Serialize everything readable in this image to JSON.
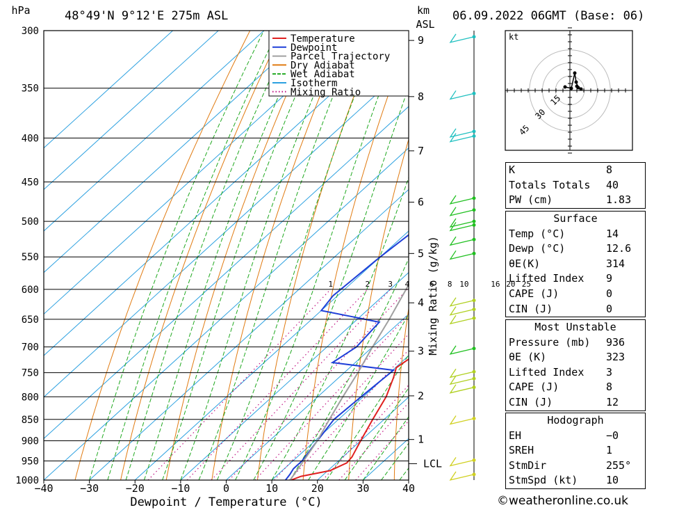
{
  "header": {
    "pressure_unit": "hPa",
    "location": "48°49'N  9°12'E  275m  ASL",
    "km_label": "km",
    "asl_label": "ASL",
    "datetime": "06.09.2022  06GMT  (Base: 06)"
  },
  "chart_data": {
    "type": "line",
    "title": "48°49'N  9°12'E  275m  ASL",
    "xlabel": "Dewpoint / Temperature (°C)",
    "ylabel": "hPa",
    "xlim": [
      -40,
      40
    ],
    "ylim": [
      1000,
      300
    ],
    "x_ticks": [
      "−40",
      "−30",
      "−20",
      "−10",
      "0",
      "10",
      "20",
      "30",
      "40"
    ],
    "x_tick_values": [
      -40,
      -30,
      -20,
      -10,
      0,
      10,
      20,
      30,
      40
    ],
    "pressure_levels": [
      300,
      350,
      400,
      450,
      500,
      550,
      600,
      650,
      700,
      750,
      800,
      850,
      900,
      950,
      1000
    ],
    "km_ticks": [
      {
        "label": "9",
        "p": 308
      },
      {
        "label": "8",
        "p": 358
      },
      {
        "label": "7",
        "p": 414
      },
      {
        "label": "6",
        "p": 475
      },
      {
        "label": "5",
        "p": 545
      },
      {
        "label": "4",
        "p": 622
      },
      {
        "label": "3",
        "p": 708
      },
      {
        "label": "2",
        "p": 798
      },
      {
        "label": "1",
        "p": 897
      }
    ],
    "lcl": {
      "label": "LCL",
      "p": 957
    },
    "mixing_ratio_label": "Mixing Ratio (g/kg)",
    "mixing_ratio_lines": [
      "1",
      "2",
      "3",
      "4",
      "6",
      "8",
      "10",
      "16",
      "20",
      "25"
    ],
    "legend_position": "top-right",
    "legend": [
      {
        "name": "Temperature",
        "color": "#e02020"
      },
      {
        "name": "Dewpoint",
        "color": "#1f3fd8"
      },
      {
        "name": "Parcel Trajectory",
        "color": "#a0a0a0"
      },
      {
        "name": "Dry Adiabat",
        "color": "#e07a10"
      },
      {
        "name": "Wet Adiabat",
        "color": "#1fa81f"
      },
      {
        "name": "Isotherm",
        "color": "#2ba0e0"
      },
      {
        "name": "Mixing Ratio",
        "color": "#c01080"
      }
    ],
    "series": [
      {
        "name": "Temperature",
        "points": [
          [
            1000,
            14.2
          ],
          [
            990,
            15.5
          ],
          [
            975,
            20.5
          ],
          [
            955,
            22.3
          ],
          [
            940,
            22
          ],
          [
            900,
            20
          ],
          [
            850,
            17.5
          ],
          [
            800,
            15
          ],
          [
            760,
            12
          ],
          [
            740,
            10.2
          ],
          [
            720,
            11
          ],
          [
            700,
            11.2
          ],
          [
            660,
            9
          ],
          [
            640,
            8.5
          ],
          [
            618,
            11.3
          ],
          [
            600,
            10.5
          ],
          [
            550,
            8
          ],
          [
            500,
            5
          ],
          [
            460,
            1.5
          ],
          [
            420,
            -2.5
          ],
          [
            380,
            -6
          ],
          [
            365,
            -6
          ],
          [
            340,
            -8
          ],
          [
            320,
            -10
          ],
          [
            310,
            -10
          ],
          [
            300,
            -12
          ]
        ]
      },
      {
        "name": "Dewpoint",
        "points": [
          [
            1000,
            13
          ],
          [
            985,
            12.6
          ],
          [
            970,
            12
          ],
          [
            950,
            12
          ],
          [
            900,
            10.5
          ],
          [
            850,
            9
          ],
          [
            800,
            9.5
          ],
          [
            745,
            10.2
          ],
          [
            730,
            -5
          ],
          [
            700,
            -3.5
          ],
          [
            655,
            -4.5
          ],
          [
            635,
            -20
          ],
          [
            610,
            -21
          ],
          [
            550,
            -20
          ],
          [
            500,
            -18.5
          ],
          [
            470,
            -19
          ],
          [
            440,
            -15
          ],
          [
            410,
            -11
          ],
          [
            390,
            -10
          ],
          [
            365,
            -26
          ],
          [
            330,
            -26
          ],
          [
            315,
            -25
          ],
          [
            310,
            -18
          ],
          [
            305,
            -17.5
          ],
          [
            300,
            -15
          ]
        ]
      },
      {
        "name": "Parcel Trajectory",
        "points": [
          [
            1000,
            14
          ],
          [
            957,
            12.6
          ],
          [
            900,
            10.5
          ],
          [
            850,
            8
          ],
          [
            800,
            5.5
          ],
          [
            750,
            3
          ],
          [
            700,
            0
          ],
          [
            650,
            -3
          ],
          [
            600,
            -6.5
          ],
          [
            550,
            -10.5
          ],
          [
            500,
            -15
          ],
          [
            450,
            -20.5
          ],
          [
            400,
            -27
          ],
          [
            350,
            -34.5
          ],
          [
            300,
            -43
          ]
        ]
      }
    ]
  },
  "hodograph": {
    "unit": "kt",
    "ring_labels": [
      "15",
      "30",
      "45"
    ]
  },
  "indices": {
    "general": [
      {
        "k": "K",
        "v": "8"
      },
      {
        "k": "Totals Totals",
        "v": "40"
      },
      {
        "k": "PW (cm)",
        "v": "1.83"
      }
    ],
    "surface_title": "Surface",
    "surface_temp_label": "Temp (°C)",
    "surface_temp_value": "14",
    "surface_dewp_label": "Dewp (°C)",
    "surface_dewp_value": "12.6",
    "surface_theta_label": "θE(K)",
    "surface_theta_value": "314",
    "surface_li_label": "Lifted Index",
    "surface_li_value": "9",
    "surface_cape_label": "CAPE (J)",
    "surface_cape_value": "0",
    "surface_cin_label": "CIN (J)",
    "surface_cin_value": "0",
    "mu_title": "Most Unstable",
    "mu_pressure_label": "Pressure (mb)",
    "mu_pressure_value": "936",
    "mu_theta_label": "θE (K)",
    "mu_theta_value": "323",
    "mu_li_label": "Lifted Index",
    "mu_li_value": "3",
    "mu_cape_label": "CAPE (J)",
    "mu_cape_value": "8",
    "mu_cin_label": "CIN (J)",
    "mu_cin_value": "12",
    "hodo_title": "Hodograph",
    "hodo_eh_label": "EH",
    "hodo_eh_value": "−0",
    "hodo_srh_label": "SREH",
    "hodo_srh_value": "1",
    "hodo_dir_label": "StmDir",
    "hodo_dir_value": "255°",
    "hodo_spd_label": "StmSpd (kt)",
    "hodo_spd_value": "10"
  },
  "credit": "©weatheronline.co.uk"
}
